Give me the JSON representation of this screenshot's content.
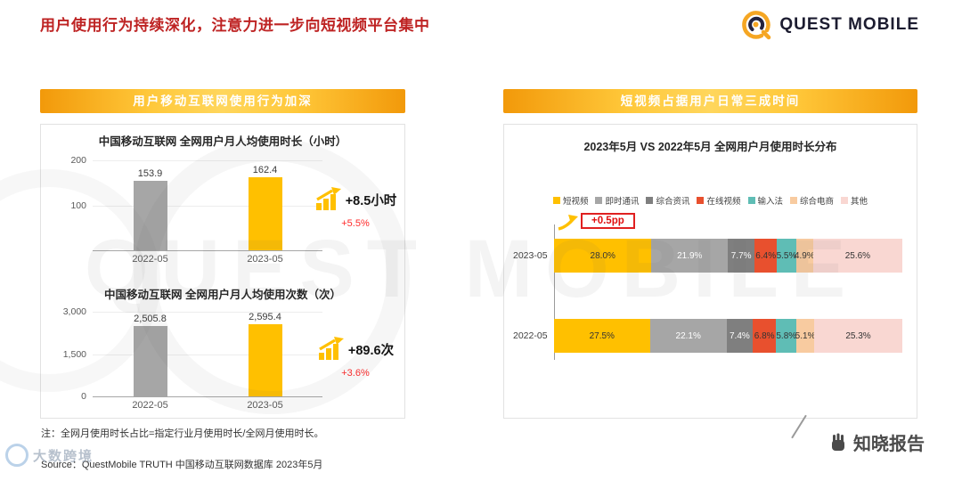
{
  "page": {
    "title": "用户使用行为持续深化，注意力进一步向短视频平台集中",
    "note": "注：全网月使用时长占比=指定行业月使用时长/全网月使用时长。",
    "source": "Source：QuestMobile TRUTH 中国移动互联网数据库 2023年5月"
  },
  "brand": {
    "logo_text": "QUEST MOBILE"
  },
  "watermarks": {
    "center_text": "QUEST MOBILE",
    "bottom_right": "知晓报告",
    "bottom_left": "大数跨境"
  },
  "left_panel": {
    "header": "用户移动互联网使用行为加深"
  },
  "right_panel": {
    "header": "短视频占据用户日常三成时间"
  },
  "colors": {
    "accent_yellow": "#FFC000",
    "bar_gray": "#A6A6A6",
    "title_red": "#BE2323",
    "delta_red": "#FF2A2A"
  },
  "chart_data": [
    {
      "id": "hours",
      "type": "bar",
      "title": "中国移动互联网 全网用户月人均使用时长（小时）",
      "categories": [
        "2022-05",
        "2023-05"
      ],
      "values": [
        153.9,
        162.4
      ],
      "value_labels": [
        "153.9",
        "162.4"
      ],
      "bar_colors": [
        "#A6A6A6",
        "#FFC000"
      ],
      "ylim": [
        0,
        200
      ],
      "yticks": [
        "200",
        "100"
      ],
      "delta": "+8.5小时",
      "delta_pct": "+5.5%"
    },
    {
      "id": "counts",
      "type": "bar",
      "title": "中国移动互联网 全网用户月人均使用次数（次）",
      "categories": [
        "2022-05",
        "2023-05"
      ],
      "values": [
        2505.8,
        2595.4
      ],
      "value_labels": [
        "2,505.8",
        "2,595.4"
      ],
      "bar_colors": [
        "#A6A6A6",
        "#FFC000"
      ],
      "ylim": [
        0,
        3000
      ],
      "yticks": [
        "3,000",
        "1,500",
        "0"
      ],
      "delta": "+89.6次",
      "delta_pct": "+3.6%"
    },
    {
      "id": "distribution",
      "type": "stacked-bar-horizontal",
      "title": "2023年5月 VS 2022年5月 全网用户月使用时长分布",
      "categories": [
        "2023-05",
        "2022-05"
      ],
      "annotation": "+0.5pp",
      "xlim": [
        0,
        100
      ],
      "series": [
        {
          "name": "短视频",
          "color": "#FFC000",
          "text": "#333333",
          "values": [
            28.0,
            27.5
          ]
        },
        {
          "name": "即时通讯",
          "color": "#A6A6A6",
          "text": "#FFFFFF",
          "values": [
            21.9,
            22.1
          ]
        },
        {
          "name": "综合资讯",
          "color": "#7F7F7F",
          "text": "#FFFFFF",
          "values": [
            7.7,
            7.4
          ]
        },
        {
          "name": "在线视频",
          "color": "#E8502E",
          "text": "#333333",
          "values": [
            6.4,
            6.8
          ]
        },
        {
          "name": "输入法",
          "color": "#5FBDB5",
          "text": "#333333",
          "values": [
            5.5,
            5.8
          ]
        },
        {
          "name": "综合电商",
          "color": "#F8CBA0",
          "text": "#333333",
          "values": [
            4.9,
            5.1
          ]
        },
        {
          "name": "其他",
          "color": "#F9D7D2",
          "text": "#333333",
          "values": [
            25.6,
            25.3
          ]
        }
      ]
    }
  ]
}
